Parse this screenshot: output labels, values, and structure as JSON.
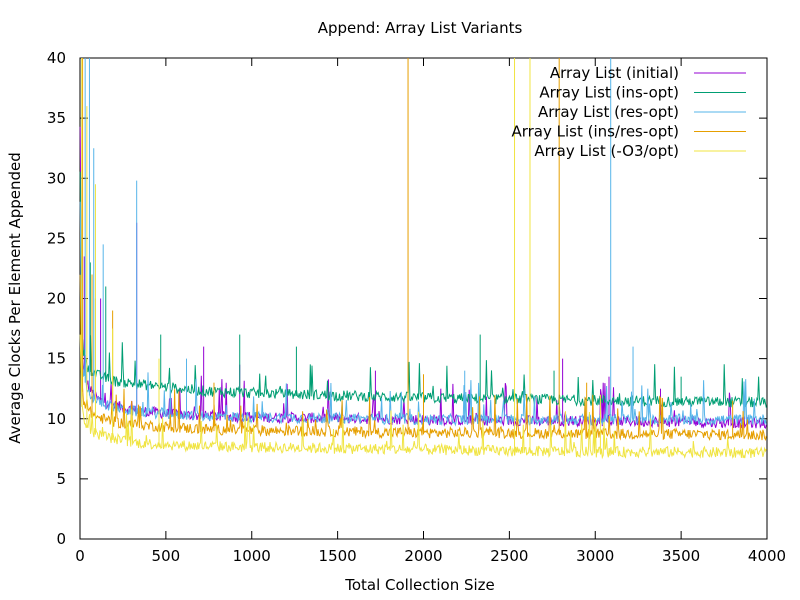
{
  "chart_data": {
    "type": "line",
    "title": "Append:  Array List Variants",
    "xlabel": "Total Collection Size",
    "ylabel": "Average Clocks Per Element Appended",
    "xlim": [
      0,
      4000
    ],
    "ylim": [
      0,
      40
    ],
    "x_ticks": [
      0,
      500,
      1000,
      1500,
      2000,
      2500,
      3000,
      3500,
      4000
    ],
    "x_tick_labels": [
      "0",
      "500",
      "1000",
      "1500",
      "2000",
      "2500",
      "3000",
      "3500",
      "4000"
    ],
    "y_ticks": [
      0,
      5,
      10,
      15,
      20,
      25,
      30,
      35,
      40
    ],
    "y_tick_labels": [
      "0",
      "5",
      "10",
      "15",
      "20",
      "25",
      "30",
      "35",
      "40"
    ],
    "grid": false,
    "legend_position": "top-right",
    "series": [
      {
        "name": "Array List (initial)",
        "color": "#9400d3",
        "x": [
          1,
          10,
          20,
          50,
          100,
          200,
          300,
          500,
          700,
          1000,
          1500,
          2000,
          2500,
          3000,
          3500,
          4000
        ],
        "values": [
          34,
          16,
          14,
          12.5,
          11.5,
          11,
          10.6,
          10.3,
          10.1,
          10,
          9.9,
          9.8,
          9.7,
          9.7,
          9.6,
          9.5
        ],
        "spikes": [
          [
            25,
            23.5
          ],
          [
            120,
            20
          ],
          [
            330,
            26.3
          ],
          [
            720,
            16
          ],
          [
            930,
            14.5
          ],
          [
            1720,
            14
          ],
          [
            2810,
            15
          ],
          [
            3080,
            13.5
          ],
          [
            3380,
            12.5
          ]
        ]
      },
      {
        "name": "Array List (ins-opt)",
        "color": "#009e73",
        "x": [
          1,
          10,
          20,
          50,
          100,
          200,
          300,
          500,
          700,
          1000,
          1500,
          2000,
          2500,
          3000,
          3500,
          4000
        ],
        "values": [
          30,
          17,
          15.5,
          14,
          13.5,
          13,
          12.8,
          12.5,
          12.2,
          12,
          11.8,
          11.6,
          11.5,
          11.4,
          11.3,
          11.2
        ],
        "spikes": [
          [
            60,
            23
          ],
          [
            90,
            20
          ],
          [
            150,
            21
          ],
          [
            470,
            17
          ],
          [
            930,
            17
          ],
          [
            1260,
            16
          ],
          [
            2330,
            17
          ],
          [
            2760,
            14
          ],
          [
            3500,
            13.5
          ]
        ]
      },
      {
        "name": "Array List (res-opt)",
        "color": "#56b4e9",
        "x": [
          1,
          10,
          20,
          50,
          100,
          200,
          300,
          500,
          700,
          1000,
          1500,
          2000,
          2500,
          3000,
          3500,
          4000
        ],
        "values": [
          28,
          15,
          13.5,
          12,
          11.3,
          10.8,
          10.5,
          10.3,
          10.1,
          10,
          9.9,
          9.8,
          9.8,
          9.8,
          9.8,
          9.8
        ],
        "spikes": [
          [
            30,
            40
          ],
          [
            55,
            40
          ],
          [
            80,
            32.5
          ],
          [
            135,
            24.5
          ],
          [
            330,
            29.8
          ],
          [
            620,
            15
          ],
          [
            3090,
            40
          ],
          [
            3220,
            16
          ],
          [
            2240,
            14
          ]
        ]
      },
      {
        "name": "Array List (ins/res-opt)",
        "color": "#e69f00",
        "x": [
          1,
          10,
          20,
          50,
          100,
          200,
          300,
          500,
          700,
          1000,
          1500,
          2000,
          2500,
          3000,
          3500,
          4000
        ],
        "values": [
          22,
          13,
          11.5,
          10.5,
          10,
          9.6,
          9.4,
          9.2,
          9,
          8.9,
          8.8,
          8.7,
          8.7,
          8.6,
          8.6,
          8.5
        ],
        "spikes": [
          [
            15,
            40
          ],
          [
            70,
            22
          ],
          [
            190,
            19
          ],
          [
            780,
            13
          ],
          [
            1910,
            40
          ],
          [
            2790,
            40
          ],
          [
            2000,
            13.7
          ],
          [
            2950,
            13
          ],
          [
            3800,
            11.5
          ]
        ]
      },
      {
        "name": "Array List (-O3/opt)",
        "color": "#f0e442",
        "x": [
          1,
          10,
          20,
          50,
          100,
          200,
          300,
          500,
          700,
          1000,
          1500,
          2000,
          2500,
          3000,
          3500,
          4000
        ],
        "values": [
          17,
          11,
          10,
          9,
          8.6,
          8.2,
          7.9,
          7.7,
          7.6,
          7.5,
          7.4,
          7.3,
          7.2,
          7.1,
          7.1,
          7.0
        ],
        "spikes": [
          [
            10,
            40
          ],
          [
            40,
            36
          ],
          [
            90,
            29.5
          ],
          [
            190,
            17.5
          ],
          [
            460,
            15
          ],
          [
            2530,
            40
          ],
          [
            2620,
            40
          ],
          [
            3030,
            12
          ]
        ]
      }
    ]
  }
}
